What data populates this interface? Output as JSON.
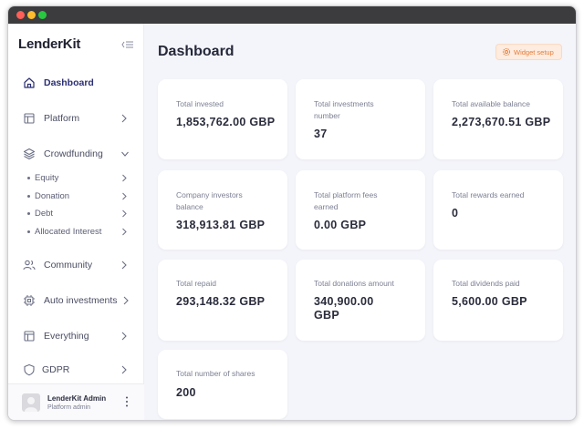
{
  "app": {
    "logo": "LenderKit"
  },
  "sidebar": {
    "nav": [
      {
        "label": "Dashboard",
        "icon": "home-icon"
      },
      {
        "label": "Platform",
        "icon": "layout-icon"
      },
      {
        "label": "Crowdfunding",
        "icon": "layers-icon"
      },
      {
        "label": "Community",
        "icon": "users-icon"
      },
      {
        "label": "Auto investments",
        "icon": "cpu-icon"
      },
      {
        "label": "Everything",
        "icon": "layout-icon"
      },
      {
        "label": "GDPR",
        "icon": "shield-icon"
      }
    ],
    "crowdfunding_sub": [
      {
        "label": "Equity"
      },
      {
        "label": "Donation"
      },
      {
        "label": "Debt"
      },
      {
        "label": "Allocated Interest"
      }
    ],
    "user": {
      "name": "LenderKit Admin",
      "role": "Platform admin"
    }
  },
  "main": {
    "title": "Dashboard",
    "widget_button": "Widget setup",
    "cards": [
      {
        "label": "Total invested",
        "value": "1,853,762.00 GBP"
      },
      {
        "label": "Total investments number",
        "value": "37"
      },
      {
        "label": "Total available balance",
        "value": "2,273,670.51 GBP"
      },
      {
        "label": "Company investors balance",
        "value": "318,913.81 GBP"
      },
      {
        "label": "Total platform fees earned",
        "value": "0.00 GBP"
      },
      {
        "label": "Total rewards earned",
        "value": "0"
      },
      {
        "label": "Total repaid",
        "value": "293,148.32 GBP"
      },
      {
        "label": "Total donations amount",
        "value": "340,900.00 GBP"
      },
      {
        "label": "Total dividends paid",
        "value": "5,600.00 GBP"
      },
      {
        "label": "Total number of shares",
        "value": "200"
      }
    ]
  },
  "colors": {
    "accent": "#2b2f73",
    "widget_accent": "#e47c3a",
    "widget_bg": "#fdecdf",
    "page_bg": "#f4f5fa",
    "card_bg": "#ffffff"
  }
}
